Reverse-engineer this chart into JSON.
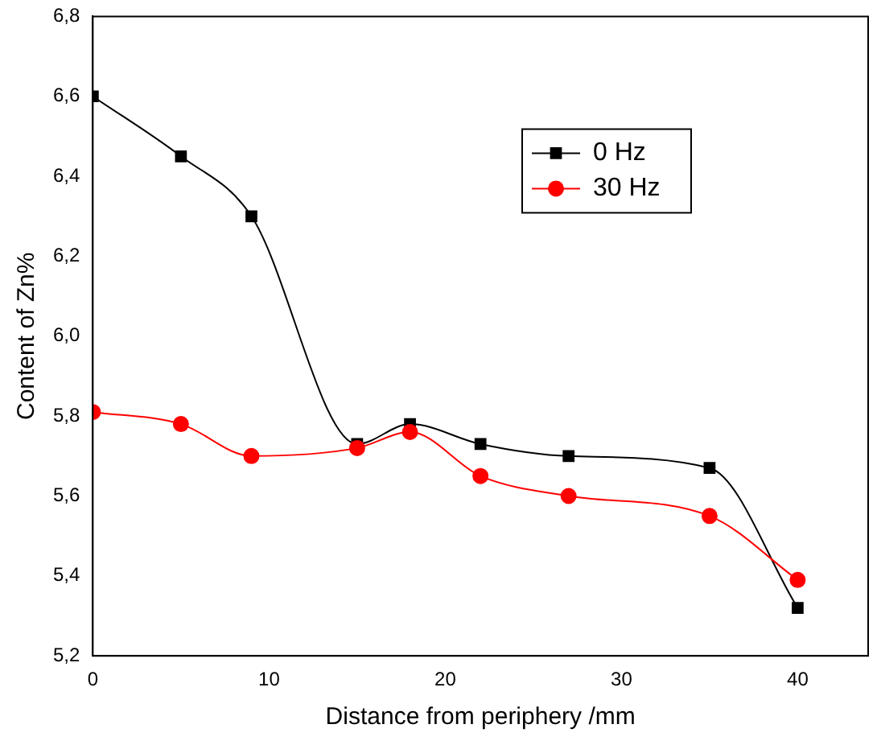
{
  "chart_data": {
    "type": "line",
    "xlabel": "Distance from periphery /mm",
    "ylabel": "Content of Zn%",
    "x": [
      0,
      5,
      9,
      15,
      18,
      22,
      27,
      35,
      40
    ],
    "series": [
      {
        "name": "0 Hz",
        "color": "#000000",
        "marker": "square",
        "values": [
          6.6,
          6.45,
          6.3,
          5.73,
          5.78,
          5.73,
          5.7,
          5.67,
          5.32
        ]
      },
      {
        "name": "30 Hz",
        "color": "#ff0000",
        "marker": "circle",
        "values": [
          5.81,
          5.78,
          5.7,
          5.72,
          5.76,
          5.65,
          5.6,
          5.55,
          5.39
        ]
      }
    ],
    "xlim": [
      0,
      44
    ],
    "xticks": [
      0,
      10,
      20,
      30,
      40
    ],
    "ylim": [
      5.2,
      6.8
    ],
    "yticks": [
      {
        "value": 5.2,
        "label": "5,2"
      },
      {
        "value": 5.4,
        "label": "5,4"
      },
      {
        "value": 5.6,
        "label": "5,6"
      },
      {
        "value": 5.8,
        "label": "5,8"
      },
      {
        "value": 6.0,
        "label": "6,0"
      },
      {
        "value": 6.2,
        "label": "6,2"
      },
      {
        "value": 6.4,
        "label": "6,4"
      },
      {
        "value": 6.6,
        "label": "6,6"
      },
      {
        "value": 6.8,
        "label": "6,8"
      }
    ],
    "grid": false,
    "legend": "top right",
    "line_style": "solid"
  }
}
